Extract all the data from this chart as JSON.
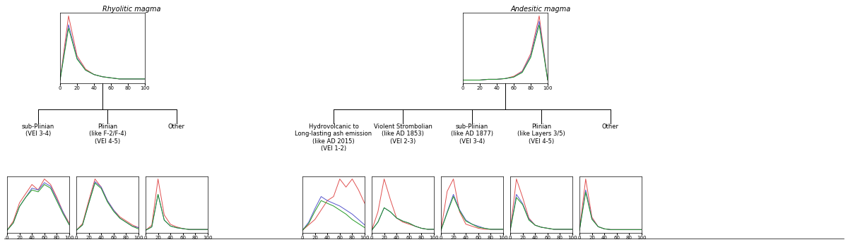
{
  "title_left": "Rhyolitic magma",
  "title_right": "Andesitic magma",
  "colors": [
    "#e05050",
    "#5555cc",
    "#229922"
  ],
  "left_top_curves": {
    "red": [
      0.0,
      0.58,
      0.22,
      0.1,
      0.05,
      0.03,
      0.02,
      0.01,
      0.01,
      0.01,
      0.01
    ],
    "blue": [
      0.0,
      0.5,
      0.2,
      0.09,
      0.05,
      0.03,
      0.02,
      0.01,
      0.01,
      0.01,
      0.01
    ],
    "green": [
      0.0,
      0.47,
      0.19,
      0.09,
      0.05,
      0.03,
      0.02,
      0.01,
      0.01,
      0.01,
      0.01
    ]
  },
  "right_top_curves": {
    "red": [
      0.0,
      0.0,
      0.0,
      0.01,
      0.01,
      0.02,
      0.05,
      0.12,
      0.35,
      0.85,
      0.0
    ],
    "blue": [
      0.0,
      0.0,
      0.0,
      0.01,
      0.01,
      0.02,
      0.04,
      0.11,
      0.32,
      0.78,
      0.0
    ],
    "green": [
      0.0,
      0.0,
      0.0,
      0.01,
      0.01,
      0.02,
      0.04,
      0.1,
      0.3,
      0.73,
      0.0
    ]
  },
  "left_sub": [
    {
      "label": "sub-Plinian\n(VEI 3-4)",
      "red": [
        0.0,
        0.05,
        0.15,
        0.2,
        0.25,
        0.22,
        0.28,
        0.25,
        0.18,
        0.1,
        0.04
      ],
      "blue": [
        0.0,
        0.04,
        0.13,
        0.18,
        0.23,
        0.22,
        0.26,
        0.24,
        0.17,
        0.1,
        0.03
      ],
      "green": [
        0.0,
        0.04,
        0.13,
        0.18,
        0.22,
        0.21,
        0.25,
        0.23,
        0.16,
        0.09,
        0.03
      ]
    },
    {
      "label": "Plinian\n(like F-2/F-4)\n(VEI 4-5)",
      "red": [
        0.0,
        0.05,
        0.22,
        0.38,
        0.32,
        0.22,
        0.15,
        0.1,
        0.07,
        0.04,
        0.02
      ],
      "blue": [
        0.0,
        0.04,
        0.2,
        0.36,
        0.32,
        0.22,
        0.15,
        0.09,
        0.06,
        0.03,
        0.02
      ],
      "green": [
        0.0,
        0.04,
        0.2,
        0.35,
        0.31,
        0.21,
        0.14,
        0.09,
        0.06,
        0.03,
        0.01
      ]
    },
    {
      "label": "Other",
      "red": [
        0.0,
        0.06,
        0.6,
        0.18,
        0.07,
        0.04,
        0.02,
        0.01,
        0.01,
        0.01,
        0.01
      ],
      "blue": [
        0.0,
        0.04,
        0.42,
        0.12,
        0.05,
        0.03,
        0.02,
        0.01,
        0.01,
        0.01,
        0.01
      ],
      "green": [
        0.0,
        0.04,
        0.42,
        0.12,
        0.05,
        0.03,
        0.02,
        0.01,
        0.01,
        0.01,
        0.01
      ]
    }
  ],
  "right_sub": [
    {
      "label": "Hydrovolcanic to\nLong-lasting ash emission\n(like AD 2015)\n(VEI 1-2)",
      "red": [
        0.0,
        0.04,
        0.08,
        0.15,
        0.22,
        0.25,
        0.38,
        0.32,
        0.38,
        0.3,
        0.2
      ],
      "blue": [
        0.0,
        0.06,
        0.16,
        0.25,
        0.22,
        0.2,
        0.18,
        0.15,
        0.12,
        0.08,
        0.04
      ],
      "green": [
        0.0,
        0.05,
        0.14,
        0.22,
        0.2,
        0.18,
        0.15,
        0.12,
        0.08,
        0.05,
        0.02
      ]
    },
    {
      "label": "Violent Strombolian\n(like AD 1853)\n(VEI 2-3)",
      "red": [
        0.0,
        0.18,
        0.5,
        0.3,
        0.12,
        0.08,
        0.06,
        0.04,
        0.02,
        0.01,
        0.01
      ],
      "blue": [
        0.0,
        0.08,
        0.22,
        0.18,
        0.12,
        0.09,
        0.07,
        0.04,
        0.02,
        0.01,
        0.01
      ],
      "green": [
        0.0,
        0.08,
        0.22,
        0.18,
        0.12,
        0.09,
        0.07,
        0.04,
        0.02,
        0.01,
        0.01
      ]
    },
    {
      "label": "sub-Plinian\n(like AD 1877)\n(VEI 3-4)",
      "red": [
        0.0,
        0.38,
        0.5,
        0.18,
        0.06,
        0.04,
        0.02,
        0.01,
        0.01,
        0.01,
        0.01
      ],
      "blue": [
        0.0,
        0.18,
        0.35,
        0.2,
        0.1,
        0.06,
        0.04,
        0.02,
        0.01,
        0.01,
        0.01
      ],
      "green": [
        0.0,
        0.17,
        0.33,
        0.19,
        0.09,
        0.06,
        0.03,
        0.02,
        0.01,
        0.01,
        0.01
      ]
    },
    {
      "label": "Plinian\n(like Layers 3/5)\n(VEI 4-5)",
      "red": [
        0.0,
        0.5,
        0.32,
        0.12,
        0.05,
        0.03,
        0.02,
        0.01,
        0.01,
        0.01,
        0.01
      ],
      "blue": [
        0.0,
        0.35,
        0.26,
        0.11,
        0.05,
        0.03,
        0.02,
        0.01,
        0.01,
        0.01,
        0.01
      ],
      "green": [
        0.0,
        0.32,
        0.25,
        0.1,
        0.05,
        0.03,
        0.02,
        0.01,
        0.01,
        0.01,
        0.01
      ]
    },
    {
      "label": "Other",
      "red": [
        0.0,
        0.7,
        0.18,
        0.05,
        0.02,
        0.01,
        0.01,
        0.01,
        0.01,
        0.01,
        0.01
      ],
      "blue": [
        0.0,
        0.55,
        0.16,
        0.05,
        0.02,
        0.01,
        0.01,
        0.01,
        0.01,
        0.01,
        0.01
      ],
      "green": [
        0.0,
        0.52,
        0.15,
        0.05,
        0.02,
        0.01,
        0.01,
        0.01,
        0.01,
        0.01,
        0.01
      ]
    }
  ],
  "fig_width": 12.0,
  "fig_height": 3.5,
  "dpi": 100
}
